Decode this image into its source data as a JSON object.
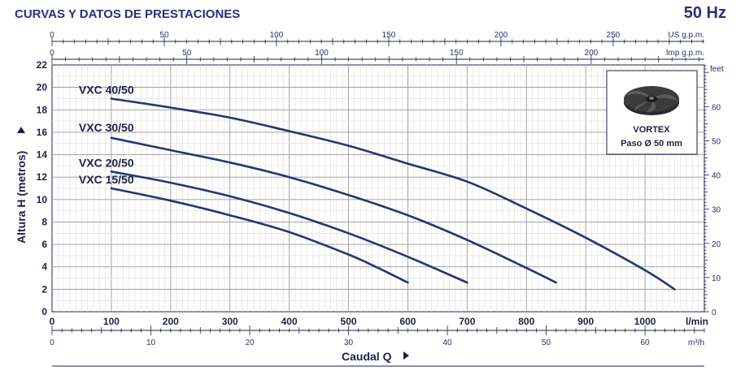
{
  "header": {
    "title": "CURVAS Y DATOS DE PRESTACIONES",
    "frequency": "50 Hz"
  },
  "inset": {
    "line1": "VORTEX",
    "line2": "Paso Ø 50 mm",
    "icon": "vortex-impeller-icon"
  },
  "chart_data": {
    "type": "line",
    "xlabel": "Caudal Q",
    "ylabel": "Altura H (metros)",
    "x_unit": "l/min",
    "xlim": [
      0,
      1100
    ],
    "ylim": [
      0,
      22
    ],
    "x_ticks": [
      0,
      100,
      200,
      300,
      400,
      500,
      600,
      700,
      800,
      900,
      1000
    ],
    "y_ticks": [
      0,
      2,
      4,
      6,
      8,
      10,
      12,
      14,
      16,
      18,
      20,
      22
    ],
    "secondary_axes": {
      "us_gpm": {
        "label": "US g.p.m.",
        "ticks": [
          0,
          50,
          100,
          150,
          200,
          250
        ],
        "per_lmin": 0.2642
      },
      "imp_gpm": {
        "label": "Imp g.p.m.",
        "ticks": [
          0,
          50,
          100,
          150,
          200
        ],
        "per_lmin": 0.21997
      },
      "feet": {
        "label": "feet",
        "ticks": [
          0,
          10,
          20,
          30,
          40,
          50,
          60
        ],
        "per_m": 3.2808
      },
      "m3h": {
        "label": "m³/h",
        "ticks": [
          0,
          10,
          20,
          30,
          40,
          50,
          60
        ],
        "per_lmin": 0.06
      }
    },
    "series": [
      {
        "name": "VXC 40/50",
        "x": [
          100,
          200,
          300,
          400,
          500,
          600,
          700,
          800,
          900,
          1000,
          1050
        ],
        "y": [
          19.0,
          18.2,
          17.3,
          16.1,
          14.8,
          13.2,
          11.6,
          9.2,
          6.6,
          3.7,
          2.0
        ]
      },
      {
        "name": "VXC 30/50",
        "x": [
          100,
          200,
          300,
          400,
          500,
          600,
          700,
          800,
          850
        ],
        "y": [
          15.5,
          14.4,
          13.3,
          12.0,
          10.4,
          8.6,
          6.4,
          3.9,
          2.6
        ]
      },
      {
        "name": "VXC 20/50",
        "x": [
          100,
          200,
          300,
          400,
          500,
          600,
          700
        ],
        "y": [
          12.5,
          11.5,
          10.3,
          8.8,
          7.0,
          4.9,
          2.6
        ]
      },
      {
        "name": "VXC 15/50",
        "x": [
          100,
          200,
          300,
          400,
          500,
          550,
          600
        ],
        "y": [
          11.0,
          9.9,
          8.6,
          7.1,
          5.1,
          3.9,
          2.6
        ]
      }
    ],
    "grid": true,
    "line_color": "#253575"
  }
}
